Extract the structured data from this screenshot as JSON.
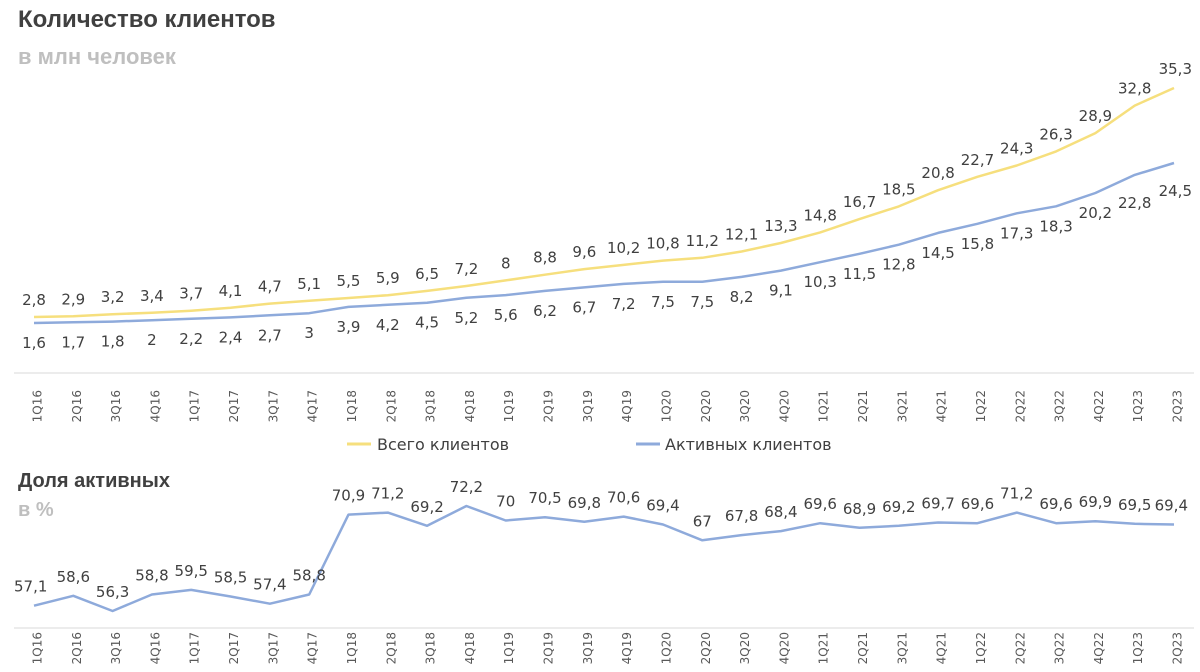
{
  "chart_data": [
    {
      "type": "line",
      "title": "Количество клиентов",
      "subtitle": "в млн человек",
      "categories": [
        "1Q16",
        "2Q16",
        "3Q16",
        "4Q16",
        "1Q17",
        "2Q17",
        "3Q17",
        "4Q17",
        "1Q18",
        "2Q18",
        "3Q18",
        "4Q18",
        "1Q19",
        "2Q19",
        "3Q19",
        "4Q19",
        "1Q20",
        "2Q20",
        "3Q20",
        "4Q20",
        "1Q21",
        "2Q21",
        "3Q21",
        "4Q21",
        "1Q22",
        "2Q22",
        "3Q22",
        "4Q22",
        "1Q23",
        "2Q23"
      ],
      "series": [
        {
          "name": "Всего клиентов",
          "color": "#f6df7d",
          "values": [
            2.8,
            2.9,
            3.2,
            3.4,
            3.7,
            4.1,
            4.7,
            5.1,
            5.5,
            5.9,
            6.5,
            7.2,
            8,
            8.8,
            9.6,
            10.2,
            10.8,
            11.2,
            12.1,
            13.3,
            14.8,
            16.7,
            18.5,
            20.8,
            22.7,
            24.3,
            26.3,
            28.9,
            32.8,
            35.3
          ],
          "labels": [
            "2,8",
            "2,9",
            "3,2",
            "3,4",
            "3,7",
            "4,1",
            "4,7",
            "5,1",
            "5,5",
            "5,9",
            "6,5",
            "7,2",
            "8",
            "8,8",
            "9,6",
            "10,2",
            "10,8",
            "11,2",
            "12,1",
            "13,3",
            "14,8",
            "16,7",
            "18,5",
            "20,8",
            "22,7",
            "24,3",
            "26,3",
            "28,9",
            "32,8",
            "35,3"
          ]
        },
        {
          "name": "Активных клиентов",
          "color": "#8eaadb",
          "values": [
            1.6,
            1.7,
            1.8,
            2,
            2.2,
            2.4,
            2.7,
            3,
            3.9,
            4.2,
            4.5,
            5.2,
            5.6,
            6.2,
            6.7,
            7.2,
            7.5,
            7.5,
            8.2,
            9.1,
            10.3,
            11.5,
            12.8,
            14.5,
            15.8,
            17.3,
            18.3,
            20.2,
            22.8,
            24.5
          ],
          "labels": [
            "1,6",
            "1,7",
            "1,8",
            "2",
            "2,2",
            "2,4",
            "2,7",
            "3",
            "3,9",
            "4,2",
            "4,5",
            "5,2",
            "5,6",
            "6,2",
            "6,7",
            "7,2",
            "7,5",
            "7,5",
            "8,2",
            "9,1",
            "10,3",
            "11,5",
            "12,8",
            "14,5",
            "15,8",
            "17,3",
            "18,3",
            "20,2",
            "22,8",
            "24,5"
          ]
        }
      ],
      "legend": "bottom"
    },
    {
      "type": "line",
      "title": "Доля активных",
      "subtitle": "в %",
      "categories": [
        "1Q16",
        "2Q16",
        "3Q16",
        "4Q16",
        "1Q17",
        "2Q17",
        "3Q17",
        "4Q17",
        "1Q18",
        "2Q18",
        "3Q18",
        "4Q18",
        "1Q19",
        "2Q19",
        "3Q19",
        "4Q19",
        "1Q20",
        "2Q20",
        "3Q20",
        "4Q20",
        "1Q21",
        "2Q21",
        "3Q21",
        "4Q21",
        "1Q22",
        "2Q22",
        "3Q22",
        "4Q22",
        "1Q23",
        "2Q23"
      ],
      "series": [
        {
          "color": "#8eaadb",
          "values": [
            57.1,
            58.6,
            56.3,
            58.8,
            59.5,
            58.5,
            57.4,
            58.8,
            70.9,
            71.2,
            69.2,
            72.2,
            70,
            70.5,
            69.8,
            70.6,
            69.4,
            67,
            67.8,
            68.4,
            69.6,
            68.9,
            69.2,
            69.7,
            69.6,
            71.2,
            69.6,
            69.9,
            69.5,
            69.4
          ],
          "labels": [
            "57,1",
            "58,6",
            "56,3",
            "58,8",
            "59,5",
            "58,5",
            "57,4",
            "58,8",
            "70,9",
            "71,2",
            "69,2",
            "72,2",
            "70",
            "70,5",
            "69,8",
            "70,6",
            "69,4",
            "67",
            "67,8",
            "68,4",
            "69,6",
            "68,9",
            "69,2",
            "69,7",
            "69,6",
            "71,2",
            "69,6",
            "69,9",
            "69,5",
            "69,4"
          ]
        }
      ]
    }
  ]
}
